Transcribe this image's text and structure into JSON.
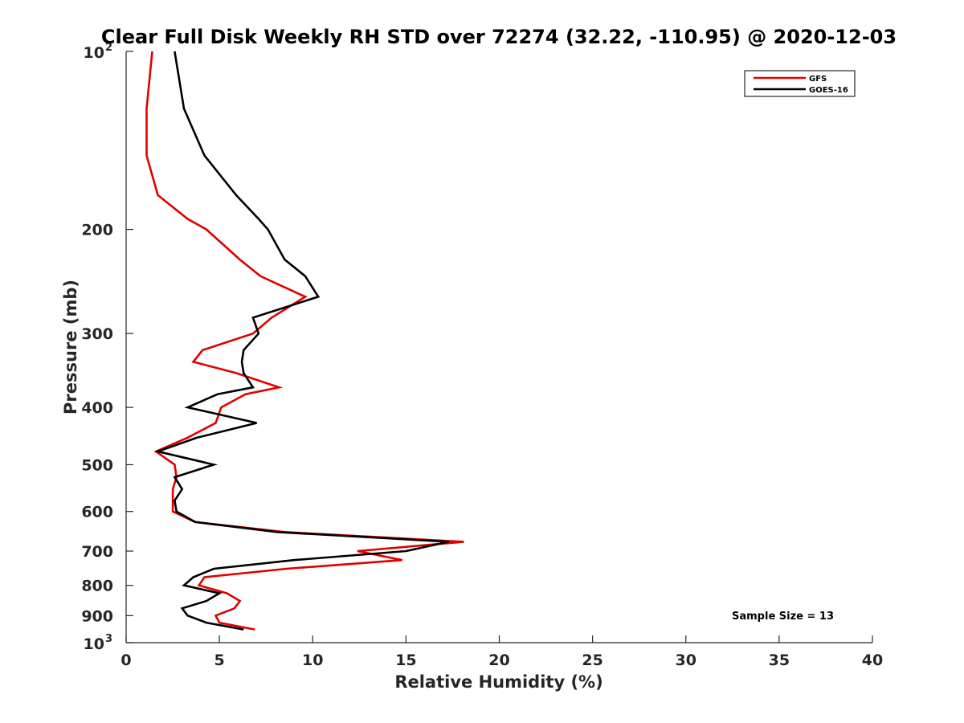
{
  "chart_data": {
    "type": "line",
    "title": "Clear Full Disk Weekly RH STD over 72274 (32.22, -110.95) @ 2020-12-03",
    "xlabel": "Relative Humidity (%)",
    "ylabel": "Pressure (mb)",
    "xlim": [
      0,
      40
    ],
    "ylim": [
      100,
      1000
    ],
    "y_scale": "log",
    "y_reversed": true,
    "x_ticks": [
      "0",
      "5",
      "10",
      "15",
      "20",
      "25",
      "30",
      "35",
      "40"
    ],
    "y_ticks": [
      {
        "value": 100,
        "base": "10",
        "exp": "2"
      },
      {
        "value": 200,
        "label": "200"
      },
      {
        "value": 300,
        "label": "300"
      },
      {
        "value": 400,
        "label": "400"
      },
      {
        "value": 500,
        "label": "500"
      },
      {
        "value": 600,
        "label": "600"
      },
      {
        "value": 700,
        "label": "700"
      },
      {
        "value": 800,
        "label": "800"
      },
      {
        "value": 900,
        "label": "900"
      },
      {
        "value": 1000,
        "base": "10",
        "exp": "3"
      }
    ],
    "legend_position": "top-right",
    "grid": false,
    "annotation": "Sample Size = 13",
    "series": [
      {
        "name": "GFS",
        "color": "#e00000",
        "points": [
          {
            "x": 1.4,
            "y": 100
          },
          {
            "x": 1.1,
            "y": 125
          },
          {
            "x": 1.1,
            "y": 150
          },
          {
            "x": 1.7,
            "y": 175
          },
          {
            "x": 3.3,
            "y": 192
          },
          {
            "x": 4.3,
            "y": 200
          },
          {
            "x": 6.1,
            "y": 225
          },
          {
            "x": 7.2,
            "y": 240
          },
          {
            "x": 9.6,
            "y": 260
          },
          {
            "x": 7.8,
            "y": 282
          },
          {
            "x": 6.8,
            "y": 300
          },
          {
            "x": 4.1,
            "y": 320
          },
          {
            "x": 3.6,
            "y": 335
          },
          {
            "x": 5.9,
            "y": 350
          },
          {
            "x": 8.2,
            "y": 370
          },
          {
            "x": 6.4,
            "y": 380
          },
          {
            "x": 5.1,
            "y": 400
          },
          {
            "x": 4.8,
            "y": 425
          },
          {
            "x": 3.3,
            "y": 450
          },
          {
            "x": 1.6,
            "y": 475
          },
          {
            "x": 2.6,
            "y": 500
          },
          {
            "x": 2.7,
            "y": 525
          },
          {
            "x": 2.5,
            "y": 550
          },
          {
            "x": 2.5,
            "y": 575
          },
          {
            "x": 2.5,
            "y": 600
          },
          {
            "x": 3.7,
            "y": 625
          },
          {
            "x": 8.5,
            "y": 650
          },
          {
            "x": 18.1,
            "y": 675
          },
          {
            "x": 12.4,
            "y": 700
          },
          {
            "x": 14.8,
            "y": 725
          },
          {
            "x": 8.6,
            "y": 750
          },
          {
            "x": 4.2,
            "y": 775
          },
          {
            "x": 3.9,
            "y": 800
          },
          {
            "x": 5.4,
            "y": 825
          },
          {
            "x": 6.1,
            "y": 850
          },
          {
            "x": 5.8,
            "y": 875
          },
          {
            "x": 4.8,
            "y": 900
          },
          {
            "x": 5.0,
            "y": 925
          },
          {
            "x": 6.9,
            "y": 950
          }
        ]
      },
      {
        "name": "GOES-16",
        "color": "#000000",
        "points": [
          {
            "x": 2.6,
            "y": 100
          },
          {
            "x": 3.1,
            "y": 125
          },
          {
            "x": 4.2,
            "y": 150
          },
          {
            "x": 5.9,
            "y": 175
          },
          {
            "x": 7.1,
            "y": 192
          },
          {
            "x": 7.6,
            "y": 200
          },
          {
            "x": 8.5,
            "y": 225
          },
          {
            "x": 9.6,
            "y": 240
          },
          {
            "x": 10.3,
            "y": 260
          },
          {
            "x": 6.8,
            "y": 282
          },
          {
            "x": 7.1,
            "y": 300
          },
          {
            "x": 6.3,
            "y": 320
          },
          {
            "x": 6.2,
            "y": 335
          },
          {
            "x": 6.3,
            "y": 350
          },
          {
            "x": 6.8,
            "y": 370
          },
          {
            "x": 4.9,
            "y": 380
          },
          {
            "x": 3.3,
            "y": 400
          },
          {
            "x": 7.0,
            "y": 425
          },
          {
            "x": 3.8,
            "y": 450
          },
          {
            "x": 1.7,
            "y": 475
          },
          {
            "x": 4.7,
            "y": 500
          },
          {
            "x": 2.6,
            "y": 525
          },
          {
            "x": 3.0,
            "y": 550
          },
          {
            "x": 2.6,
            "y": 575
          },
          {
            "x": 2.7,
            "y": 600
          },
          {
            "x": 3.7,
            "y": 625
          },
          {
            "x": 8.1,
            "y": 650
          },
          {
            "x": 17.3,
            "y": 675
          },
          {
            "x": 15.0,
            "y": 700
          },
          {
            "x": 9.0,
            "y": 725
          },
          {
            "x": 4.7,
            "y": 750
          },
          {
            "x": 3.6,
            "y": 775
          },
          {
            "x": 3.1,
            "y": 800
          },
          {
            "x": 5.0,
            "y": 825
          },
          {
            "x": 4.3,
            "y": 850
          },
          {
            "x": 3.0,
            "y": 875
          },
          {
            "x": 3.3,
            "y": 900
          },
          {
            "x": 4.3,
            "y": 925
          },
          {
            "x": 6.3,
            "y": 950
          }
        ]
      }
    ]
  }
}
